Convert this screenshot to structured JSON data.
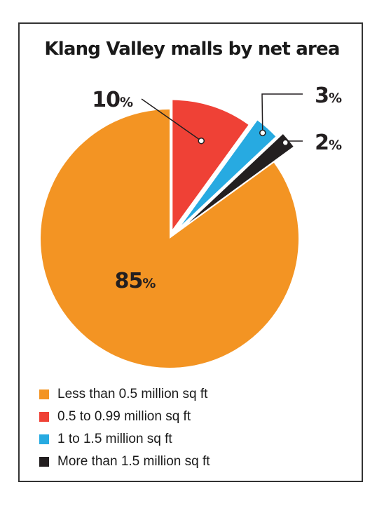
{
  "chart_data": {
    "type": "pie",
    "title": "Klang Valley malls by net area",
    "slices": [
      {
        "label": "Less than 0.5 million sq ft",
        "value": 85,
        "color": "#f39423"
      },
      {
        "label": "0.5 to 0.99 million sq ft",
        "value": 10,
        "color": "#ef4136"
      },
      {
        "label": "1 to 1.5 million sq ft",
        "value": 3,
        "color": "#27aae1"
      },
      {
        "label": "More than 1.5 million sq ft",
        "value": 2,
        "color": "#231f20"
      }
    ],
    "data_labels": [
      {
        "number": "85",
        "unit": "%"
      },
      {
        "number": "10",
        "unit": "%"
      },
      {
        "number": "3",
        "unit": "%"
      },
      {
        "number": "2",
        "unit": "%"
      }
    ],
    "legend_position": "bottom-left"
  }
}
